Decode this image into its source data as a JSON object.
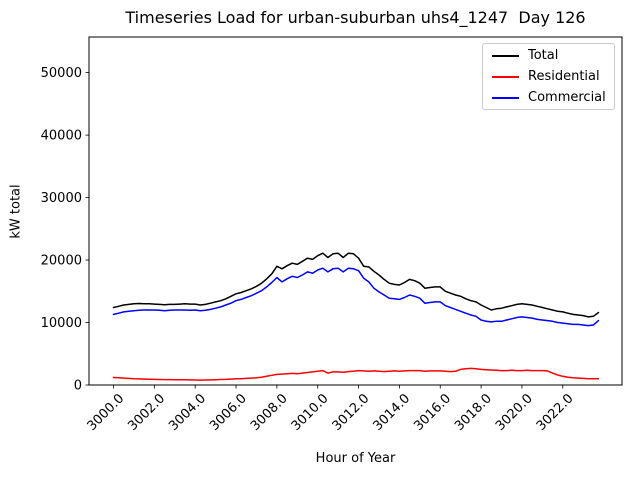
{
  "figure": {
    "background": "#ffffff",
    "axes_edge_color": "#000000"
  },
  "chart_data": {
    "type": "line",
    "title": "Timeseries Load for urban-suburban uhs4_1247  Day 126",
    "xlabel": "Hour of Year",
    "ylabel": "kW total",
    "grid": false,
    "legend_position": "upper right",
    "xlim": [
      2998.8,
      3024.9
    ],
    "ylim": [
      0,
      55700
    ],
    "xticks": [
      3000,
      3002,
      3004,
      3006,
      3008,
      3010,
      3012,
      3014,
      3016,
      3018,
      3020,
      3022
    ],
    "xtick_labels": [
      "3000.0",
      "3002.0",
      "3004.0",
      "3006.0",
      "3008.0",
      "3010.0",
      "3012.0",
      "3014.0",
      "3016.0",
      "3018.0",
      "3020.0",
      "3022.0"
    ],
    "yticks": [
      0,
      10000,
      20000,
      30000,
      40000,
      50000
    ],
    "ytick_labels": [
      "0",
      "10000",
      "20000",
      "30000",
      "40000",
      "50000"
    ],
    "x_start": 3000.0,
    "x_step": 0.25,
    "series": [
      {
        "name": "Total",
        "color": "#000000",
        "values": [
          12400,
          12600,
          12800,
          12900,
          13000,
          13050,
          13000,
          13000,
          12950,
          12900,
          12850,
          12900,
          12900,
          12950,
          13000,
          12950,
          12950,
          12800,
          12900,
          13100,
          13300,
          13500,
          13800,
          14200,
          14600,
          14800,
          15100,
          15400,
          15800,
          16300,
          17000,
          17800,
          19000,
          18600,
          19100,
          19500,
          19300,
          19800,
          20300,
          20100,
          20700,
          21100,
          20400,
          21000,
          21100,
          20400,
          21100,
          21000,
          20300,
          19000,
          18900,
          18200,
          17600,
          16900,
          16300,
          16100,
          16000,
          16400,
          16900,
          16700,
          16300,
          15500,
          15600,
          15700,
          15700,
          15000,
          14700,
          14400,
          14200,
          13800,
          13500,
          13300,
          12800,
          12400,
          12000,
          12200,
          12300,
          12500,
          12700,
          12900,
          13000,
          12900,
          12800,
          12600,
          12400,
          12200,
          12000,
          11800,
          11700,
          11500,
          11300,
          11200,
          11100,
          10900,
          11000,
          11600
        ]
      },
      {
        "name": "Residential",
        "color": "#ff0000",
        "values": [
          1200,
          1150,
          1100,
          1050,
          1000,
          980,
          950,
          930,
          900,
          880,
          870,
          860,
          850,
          840,
          830,
          820,
          800,
          790,
          800,
          820,
          850,
          880,
          900,
          950,
          1000,
          1000,
          1050,
          1100,
          1150,
          1250,
          1400,
          1550,
          1700,
          1750,
          1800,
          1850,
          1800,
          1900,
          2000,
          2100,
          2200,
          2300,
          1900,
          2100,
          2100,
          2050,
          2150,
          2200,
          2300,
          2250,
          2200,
          2250,
          2200,
          2150,
          2200,
          2250,
          2200,
          2250,
          2300,
          2300,
          2300,
          2200,
          2250,
          2250,
          2250,
          2200,
          2150,
          2200,
          2500,
          2600,
          2650,
          2600,
          2500,
          2450,
          2400,
          2350,
          2300,
          2300,
          2350,
          2300,
          2300,
          2350,
          2300,
          2300,
          2300,
          2250,
          1900,
          1600,
          1400,
          1250,
          1150,
          1100,
          1050,
          1000,
          1000,
          1000
        ]
      },
      {
        "name": "Commercial",
        "color": "#0000ff",
        "values": [
          11300,
          11500,
          11700,
          11800,
          11900,
          11950,
          12000,
          12000,
          12000,
          11950,
          11900,
          11950,
          12000,
          12000,
          12000,
          11950,
          12000,
          11900,
          11950,
          12100,
          12300,
          12500,
          12800,
          13100,
          13500,
          13700,
          14000,
          14300,
          14700,
          15100,
          15700,
          16400,
          17200,
          16500,
          17000,
          17400,
          17200,
          17600,
          18100,
          17900,
          18400,
          18700,
          18100,
          18600,
          18700,
          18100,
          18700,
          18600,
          18300,
          17100,
          16500,
          15500,
          14900,
          14400,
          13900,
          13800,
          13700,
          14000,
          14400,
          14200,
          13900,
          13100,
          13200,
          13300,
          13300,
          12700,
          12400,
          12100,
          11800,
          11500,
          11200,
          11000,
          10400,
          10200,
          10100,
          10200,
          10200,
          10400,
          10600,
          10800,
          10900,
          10800,
          10700,
          10500,
          10400,
          10300,
          10200,
          10000,
          9900,
          9800,
          9700,
          9700,
          9600,
          9500,
          9600,
          10300
        ]
      }
    ]
  }
}
